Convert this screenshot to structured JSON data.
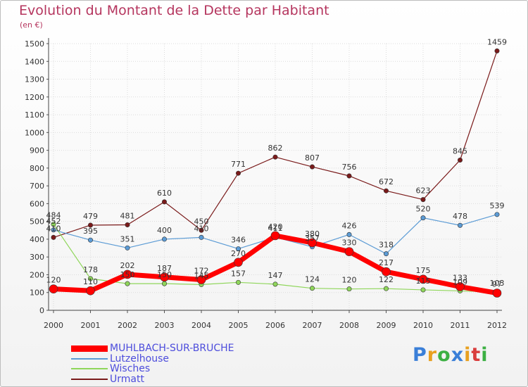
{
  "chart_data": {
    "type": "line",
    "title": "Evolution du Montant de la Dette par Habitant",
    "subtitle": "(en €)",
    "xlabel": "",
    "ylabel": "",
    "categories": [
      "2000",
      "2001",
      "2002",
      "2003",
      "2004",
      "2005",
      "2006",
      "2007",
      "2008",
      "2009",
      "2010",
      "2011",
      "2012"
    ],
    "ylim": [
      0,
      1500
    ],
    "yticks": [
      0,
      100,
      200,
      300,
      400,
      500,
      600,
      700,
      800,
      900,
      1000,
      1100,
      1200,
      1300,
      1400,
      1500
    ],
    "grid": true,
    "legend_position": "bottom-left",
    "series": [
      {
        "name": "Urmatt",
        "color": "#7a1a1a",
        "values": [
          410,
          479,
          481,
          610,
          450,
          771,
          862,
          807,
          756,
          672,
          623,
          845,
          1459
        ]
      },
      {
        "name": "Lutzelhouse",
        "color": "#5b9bd5",
        "values": [
          452,
          395,
          351,
          400,
          410,
          346,
          411,
          357,
          426,
          318,
          520,
          478,
          539
        ]
      },
      {
        "name": "Wisches",
        "color": "#8fd65a",
        "values": [
          484,
          178,
          150,
          150,
          145,
          157,
          147,
          124,
          120,
          122,
          115,
          109,
          103
        ]
      },
      {
        "name": "MUHLBACH-SUR-BRUCHE",
        "color": "#ff0000",
        "values": [
          120,
          110,
          202,
          187,
          172,
          270,
          420,
          380,
          330,
          217,
          175,
          133,
          97
        ]
      }
    ],
    "legend_order": [
      "MUHLBACH-SUR-BRUCHE",
      "Lutzelhouse",
      "Wisches",
      "Urmatt"
    ]
  },
  "branding": {
    "logo_letters": [
      "P",
      "r",
      "o",
      "x",
      "i",
      "t",
      "i"
    ],
    "logo_colors": [
      "#3a7fd8",
      "#e8a020",
      "#3cb043",
      "#3a7fd8",
      "#e8a020",
      "#d93d3d",
      "#3cb043"
    ]
  }
}
